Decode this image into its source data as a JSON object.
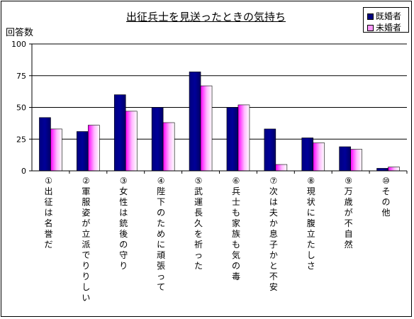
{
  "chart_data": {
    "type": "bar",
    "title": "出征兵士を見送ったときの気持ち",
    "ylabel": "回答数",
    "xlabel": "",
    "ylim": [
      0,
      100
    ],
    "yticks": [
      0,
      25,
      50,
      75,
      100
    ],
    "grid": true,
    "legend_position": "top-right",
    "categories": [
      "①出征は名誉だ",
      "②軍服姿が立派でりりしい",
      "③女性は銃後の守り",
      "④陛下のために頑張って",
      "⑤武運長久を祈った",
      "⑥兵士も家族も気の毒",
      "⑦次は夫か息子かと不安",
      "⑧現状に腹立たしさ",
      "⑨万歳が不自然",
      "⑩その他"
    ],
    "series": [
      {
        "name": "既婚者",
        "color": "#000080",
        "values": [
          42,
          31,
          60,
          50,
          78,
          50,
          33,
          26,
          19,
          2
        ]
      },
      {
        "name": "未婚者",
        "color": "#ff00ff",
        "values": [
          33,
          36,
          47,
          38,
          67,
          52,
          5,
          22,
          17,
          3
        ]
      }
    ]
  }
}
